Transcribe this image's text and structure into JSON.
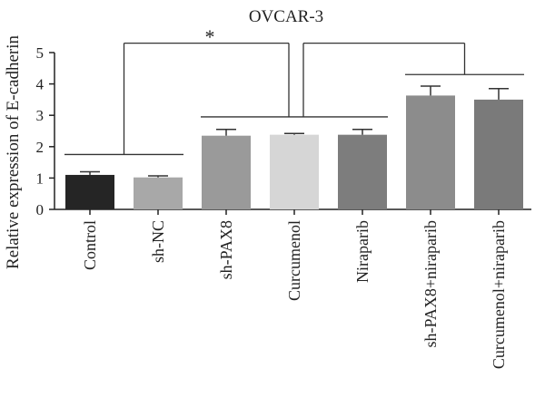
{
  "chart_data": {
    "type": "bar",
    "title": "OVCAR-3",
    "xlabel": "",
    "ylabel": "Relative expression of E-cadherin",
    "ylim": [
      0,
      5
    ],
    "yticks": [
      0,
      1,
      2,
      3,
      4,
      5
    ],
    "categories": [
      "Control",
      "sh-NC",
      "sh-PAX8",
      "Curcumenol",
      "Niraparib",
      "sh-PAX8+niraparib",
      "Curcumenol+niraparib"
    ],
    "values": [
      1.1,
      1.02,
      2.35,
      2.38,
      2.38,
      3.63,
      3.5
    ],
    "errors": [
      0.1,
      0.05,
      0.2,
      0.04,
      0.17,
      0.3,
      0.35
    ],
    "colors": [
      "#252525",
      "#a8a8a8",
      "#9a9a9a",
      "#d6d6d6",
      "#7d7d7d",
      "#8c8c8c",
      "#7a7a7a"
    ],
    "significance": {
      "label": "*",
      "groups": [
        {
          "from": 0,
          "to": 1,
          "level": 1.75
        },
        {
          "from": 2,
          "to": 4,
          "level": 2.95
        },
        {
          "from": 5,
          "to": 6,
          "level": 4.3
        }
      ],
      "connectors": [
        {
          "left_group": 0,
          "right_group": 1,
          "level": 5.3
        },
        {
          "left_group": 1,
          "right_group": 2,
          "level": 5.3
        }
      ]
    },
    "grid": false,
    "legend": "none"
  }
}
